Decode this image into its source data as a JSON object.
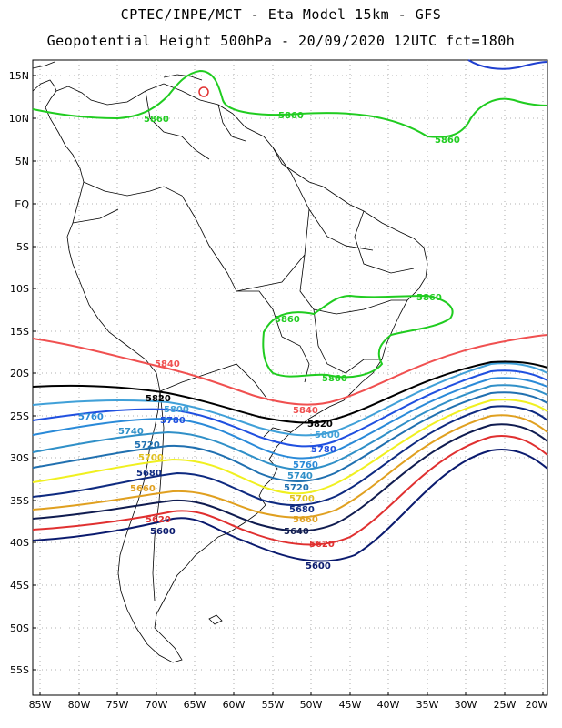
{
  "title_line1": "CPTEC/INPE/MCT -  Eta Model 15km - GFS",
  "title_line2": "Geopotential Height 500hPa - 20/09/2020 12UTC fct=180h",
  "lat_labels": [
    "15N",
    "10N",
    "5N",
    "EQ",
    "5S",
    "10S",
    "15S",
    "20S",
    "25S",
    "30S",
    "35S",
    "40S",
    "45S",
    "50S",
    "55S"
  ],
  "lon_labels": [
    "85W",
    "80W",
    "75W",
    "70W",
    "65W",
    "60W",
    "55W",
    "50W",
    "45W",
    "40W",
    "35W",
    "30W",
    "25W",
    "20W"
  ],
  "colors": {
    "c5600": "#0a1a6e",
    "c5620": "#e03030",
    "c5640": "#101c50",
    "c5660": "#e0a020",
    "c5680": "#0e2a80",
    "c5700": "#f0f020",
    "c5720": "#2070b0",
    "c5740": "#3090c8",
    "c5760": "#2a8ad8",
    "c5780": "#2050e0",
    "c5800": "#40a0d8",
    "c5820": "#000000",
    "c5840": "#f05050",
    "c5860": "#20cc20",
    "c5880": "#e03030",
    "c5900": "#2040d0"
  },
  "contours": {
    "v5600": [
      "5600",
      "5600"
    ],
    "v5620": [
      "5620",
      "5620"
    ],
    "v5640": [
      "5640"
    ],
    "v5660": [
      "5660",
      "5660"
    ],
    "v5680": [
      "5680",
      "5680"
    ],
    "v5700": [
      "5700",
      "5700"
    ],
    "v5720": [
      "5720",
      "5720"
    ],
    "v5740": [
      "5740",
      "5740"
    ],
    "v5760": [
      "5760",
      "5760"
    ],
    "v5780": [
      "5780",
      "5780"
    ],
    "v5800": [
      "5800",
      "5800"
    ],
    "v5820": [
      "5820",
      "5820"
    ],
    "v5840": [
      "5840",
      "5840"
    ],
    "v5860": [
      "5860",
      "5860",
      "5860",
      "5860",
      "5860",
      "5860"
    ]
  }
}
